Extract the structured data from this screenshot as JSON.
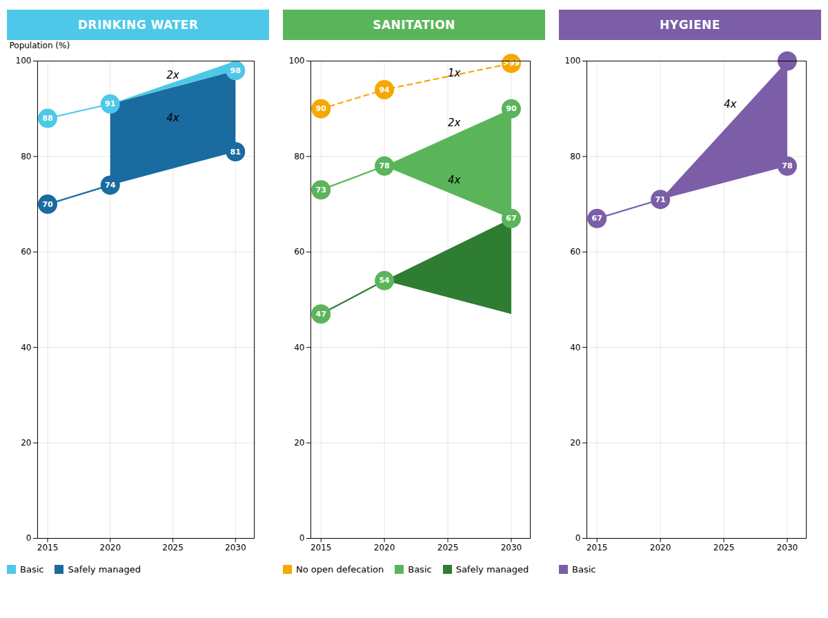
{
  "chart_data": [
    {
      "type": "line",
      "title": "DRINKING WATER",
      "color": "#4DC8E8",
      "ylabel": "Population (%)",
      "xlim": [
        2014.2,
        2031.5
      ],
      "ylim": [
        0,
        100
      ],
      "xticks": [
        2015,
        2020,
        2025,
        2030
      ],
      "yticks": [
        0,
        20,
        40,
        60,
        80,
        100
      ],
      "grid": true,
      "data_labels": true,
      "series": [
        {
          "name": "Basic",
          "color": "#4DC8E8",
          "x": [
            2015,
            2020
          ],
          "values": [
            88,
            91
          ],
          "area": [
            [
              2020,
              91
            ],
            [
              2030,
              100
            ],
            [
              2030,
              98
            ]
          ],
          "points": {
            "x": [
              2015,
              2020,
              2030
            ],
            "values": [
              88,
              91,
              98
            ]
          }
        },
        {
          "name": "Safely managed",
          "color": "#1A6BA0",
          "x": [
            2015,
            2020
          ],
          "values": [
            70,
            74
          ],
          "area": [
            [
              2020,
              74
            ],
            [
              2020,
              91
            ],
            [
              2030,
              98
            ],
            [
              2030,
              81
            ]
          ],
          "points": {
            "x": [
              2015,
              2020,
              2030
            ],
            "values": [
              70,
              74,
              81
            ]
          }
        }
      ],
      "annotations": [
        {
          "x": 2025,
          "y": 97,
          "text": "2x"
        },
        {
          "x": 2025,
          "y": 88,
          "text": "4x"
        }
      ]
    },
    {
      "type": "line",
      "title": "SANITATION",
      "color": "#5AB55A",
      "xlim": [
        2014.2,
        2031.5
      ],
      "ylim": [
        0,
        100
      ],
      "xticks": [
        2015,
        2020,
        2025,
        2030
      ],
      "yticks": [
        0,
        20,
        40,
        60,
        80,
        100
      ],
      "grid": true,
      "data_labels": true,
      "series": [
        {
          "name": "No open defecation",
          "color": "#F5A800",
          "line_style": "dashed",
          "x": [
            2015,
            2020,
            2030
          ],
          "values": [
            90,
            94,
            99.5
          ],
          "points": {
            "x": [
              2015,
              2020,
              2030
            ],
            "values": [
              90,
              94,
              99.5
            ],
            "value_labels": [
              "90",
              "94",
              ">99"
            ]
          }
        },
        {
          "name": "Basic",
          "color": "#5AB55A",
          "x": [
            2015,
            2020
          ],
          "values": [
            73,
            78
          ],
          "area": [
            [
              2020,
              78
            ],
            [
              2030,
              90
            ],
            [
              2030,
              67
            ]
          ],
          "points": {
            "x": [
              2015,
              2020,
              2030
            ],
            "values": [
              73,
              78,
              90
            ]
          }
        },
        {
          "name": "Safely managed",
          "color": "#2E7D32",
          "x": [
            2015,
            2020
          ],
          "values": [
            47,
            54
          ],
          "area": [
            [
              2020,
              54
            ],
            [
              2030,
              67
            ],
            [
              2030,
              47
            ]
          ],
          "points": {
            "x": [
              2015,
              2020,
              2030
            ],
            "values": [
              47,
              54,
              67
            ],
            "color": "#5AB55A"
          }
        }
      ],
      "annotations": [
        {
          "x": 2025.5,
          "y": 97.5,
          "text": "1x"
        },
        {
          "x": 2025.5,
          "y": 87,
          "text": "2x"
        },
        {
          "x": 2025.5,
          "y": 75,
          "text": "4x"
        }
      ]
    },
    {
      "type": "line",
      "title": "HYGIENE",
      "color": "#7B5EA7",
      "xlim": [
        2014.2,
        2031.5
      ],
      "ylim": [
        0,
        100
      ],
      "xticks": [
        2015,
        2020,
        2025,
        2030
      ],
      "yticks": [
        0,
        20,
        40,
        60,
        80,
        100
      ],
      "grid": true,
      "data_labels": true,
      "series": [
        {
          "name": "Basic",
          "color": "#7B5EA7",
          "x": [
            2015,
            2020
          ],
          "values": [
            67,
            71
          ],
          "area": [
            [
              2020,
              71
            ],
            [
              2030,
              100
            ],
            [
              2030,
              78
            ]
          ],
          "points": {
            "x": [
              2015,
              2020,
              2030,
              2030
            ],
            "values": [
              67,
              71,
              100,
              78
            ],
            "value_labels": [
              "67",
              "71",
              null,
              "78"
            ]
          }
        }
      ],
      "annotations": [
        {
          "x": 2025.5,
          "y": 91,
          "text": "4x"
        }
      ]
    }
  ]
}
